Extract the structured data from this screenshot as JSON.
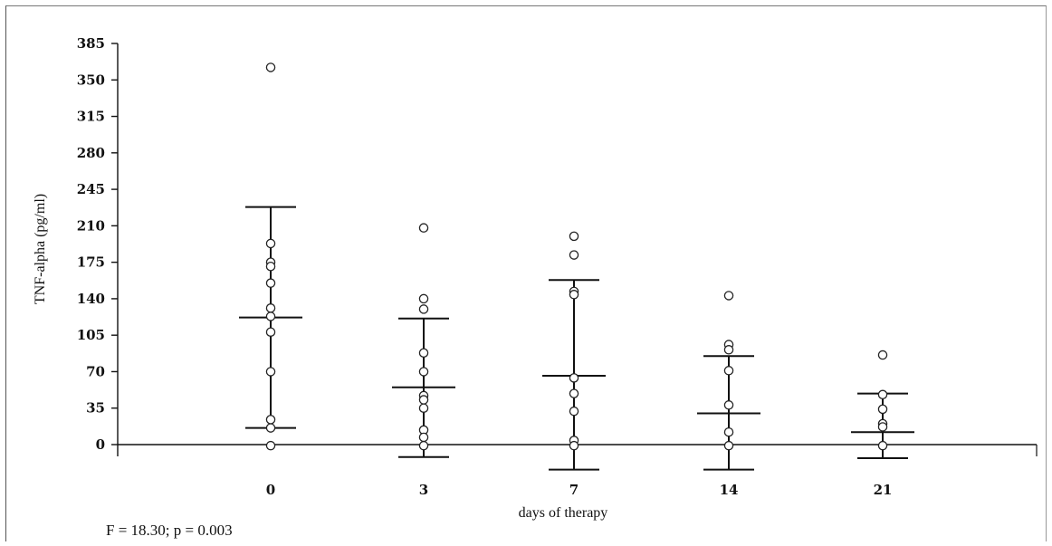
{
  "chart_data": {
    "type": "scatter",
    "title": "",
    "xlabel": "days of therapy",
    "ylabel": "TNF-alpha (pg/ml)",
    "categories": [
      "0",
      "3",
      "7",
      "14",
      "21"
    ],
    "yticks": [
      0,
      35,
      70,
      105,
      140,
      175,
      210,
      245,
      280,
      315,
      350,
      385
    ],
    "ylim": [
      -25,
      385
    ],
    "grid": false,
    "groups": [
      {
        "day": "0",
        "points": [
          362,
          193,
          175,
          171,
          155,
          131,
          123,
          108,
          70,
          24,
          16,
          -1
        ],
        "mean": 122,
        "error_upper": 228,
        "error_lower": 16
      },
      {
        "day": "3",
        "points": [
          208,
          140,
          130,
          88,
          70,
          47,
          43,
          35,
          14,
          7,
          -1
        ],
        "mean": 55,
        "error_upper": 121,
        "error_lower": -12
      },
      {
        "day": "7",
        "points": [
          200,
          182,
          147,
          144,
          64,
          49,
          32,
          4,
          -1
        ],
        "mean": 66,
        "error_upper": 158,
        "error_lower": -24
      },
      {
        "day": "14",
        "points": [
          143,
          96,
          91,
          71,
          38,
          12,
          -1
        ],
        "mean": 30,
        "error_upper": 85,
        "error_lower": -24
      },
      {
        "day": "21",
        "points": [
          86,
          48,
          34,
          20,
          17,
          -1
        ],
        "mean": 12,
        "error_upper": 49,
        "error_lower": -13
      }
    ],
    "annotation": "F = 18.30; p = 0.003"
  }
}
